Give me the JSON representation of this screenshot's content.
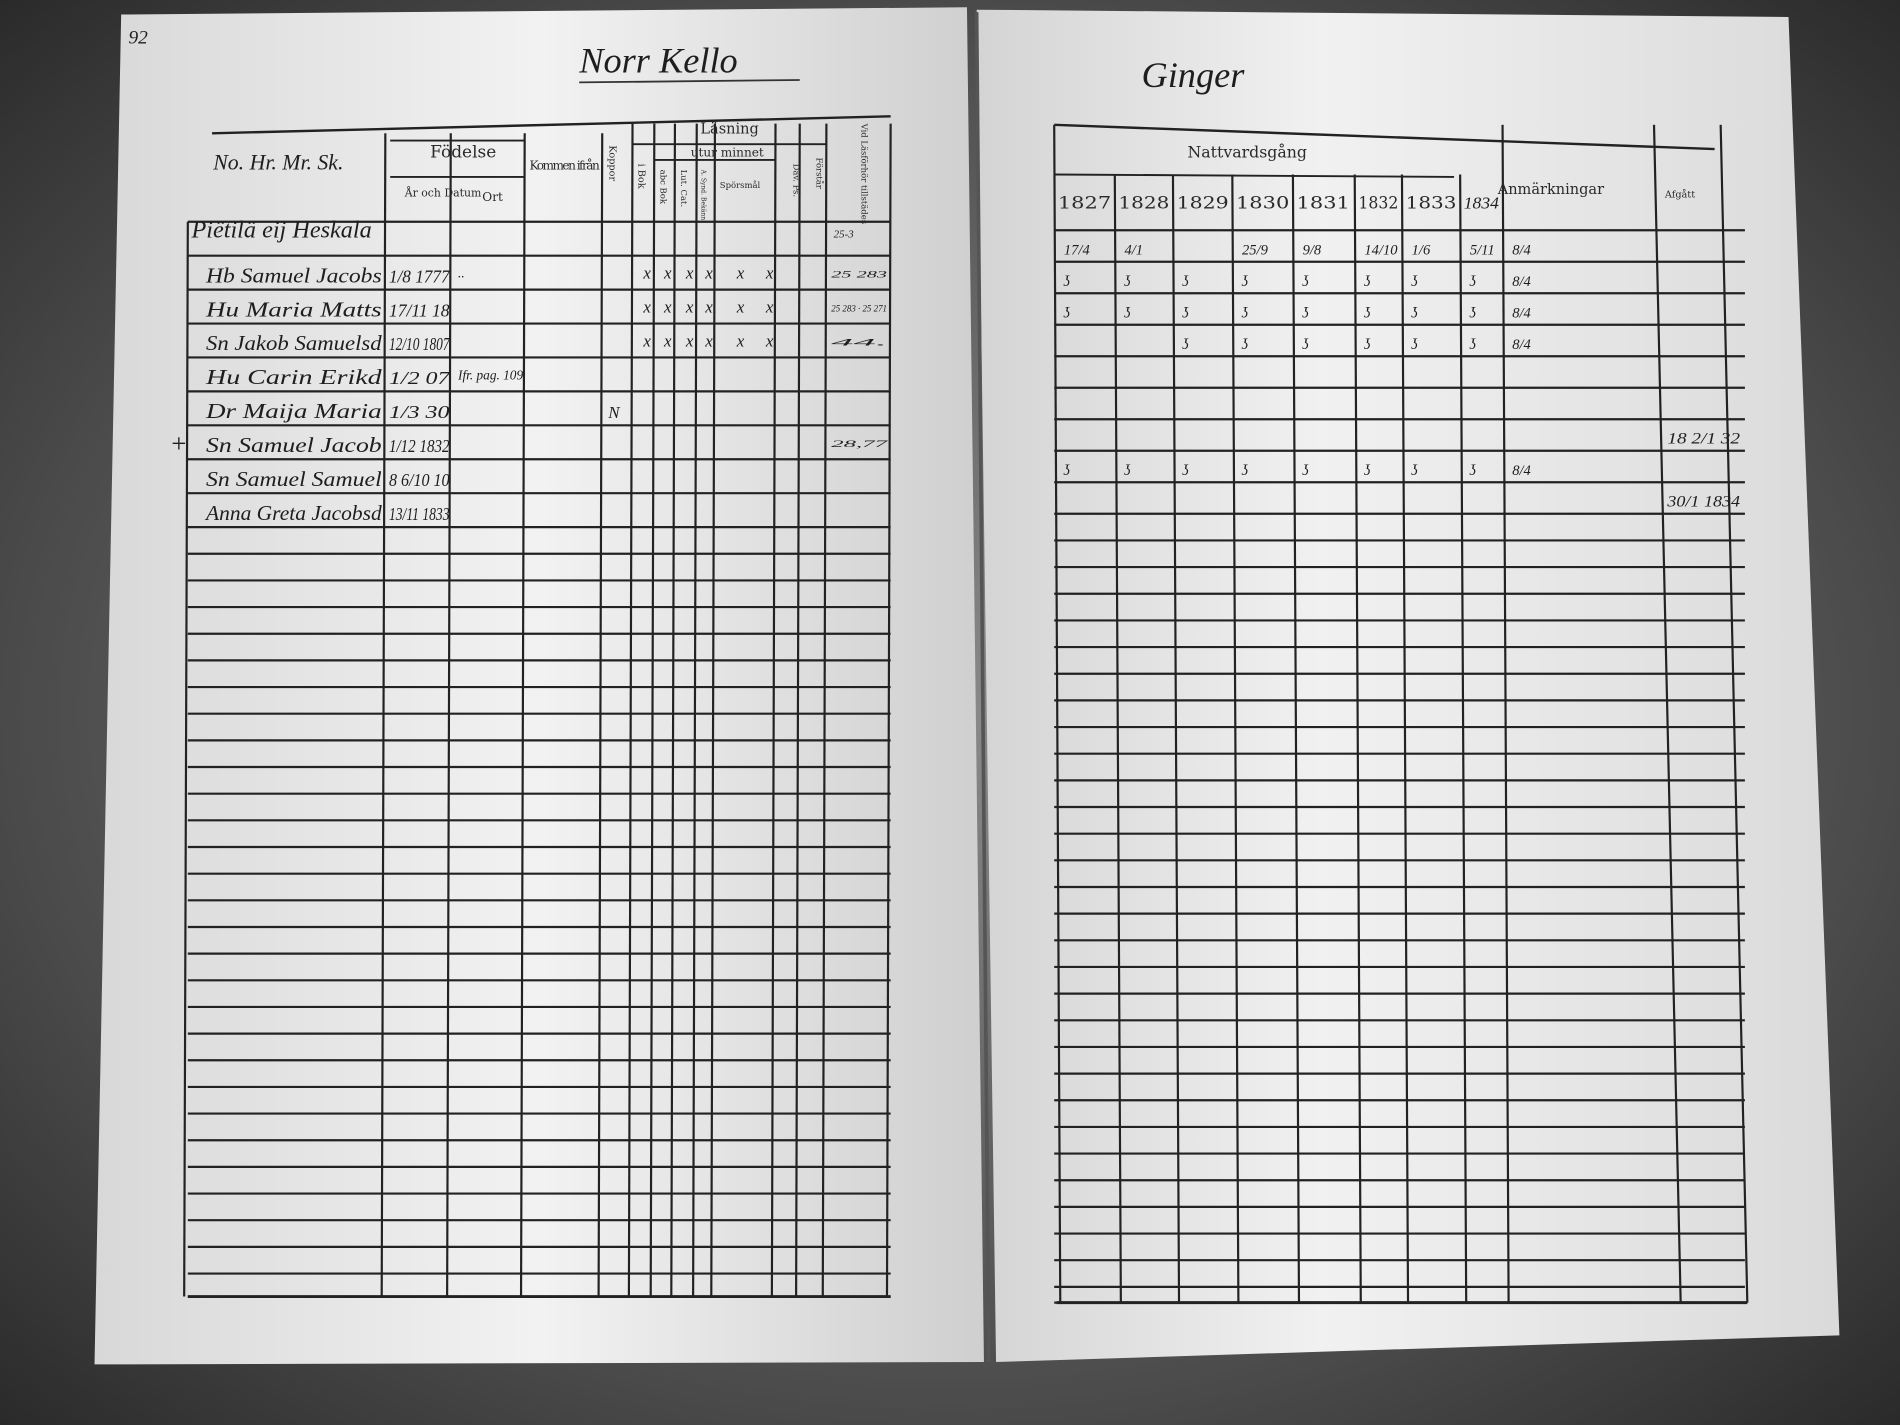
{
  "left_page": {
    "page_number": "92",
    "title": "Norr Kello",
    "headers": {
      "name_col": "No. Hr. Mr. Sk.",
      "fodelse": "Födelse",
      "ar_och_datum": "År och Datum",
      "ort": "Ort",
      "kommen_ifran": "Kommen ifrån",
      "koppor": "Koppor",
      "lasning": "Läsning",
      "utur_minnet": "utur minnet",
      "i_bok": "i Bok",
      "abc_bok": "abc Bok",
      "lut_cat": "Lut. Cat.",
      "a_synd": "A. Synd. Bekänn.",
      "sporsmal": "Spörsmål",
      "dav_ps": "Dav. Ps.",
      "forstar": "Förstår",
      "vid_lasforhor": "Vid Läsförhör tillstädes"
    },
    "household": "Piëtilä eij Heskala",
    "household_note": "25-3",
    "rows": [
      {
        "marker": "",
        "name": "Hb Samuel Jacobs",
        "birth": "1/8 1777",
        "ort": "..",
        "kommen": "",
        "koppor": "",
        "reading": [
          "x",
          "x",
          "x",
          "x",
          "x",
          "x"
        ],
        "vid": "25 283"
      },
      {
        "marker": "",
        "name": "Hu Maria Matts",
        "birth": "17/11 18",
        "ort": "",
        "kommen": "",
        "koppor": "",
        "reading": [
          "x",
          "x",
          "x",
          "x",
          "x",
          "x"
        ],
        "vid": "25 283 · 25 271"
      },
      {
        "marker": "",
        "name": "Sn Jakob Samuelsd",
        "birth": "12/10 1807",
        "ort": "",
        "kommen": "",
        "koppor": "",
        "reading": [
          "x",
          "x",
          "x",
          "x",
          "x",
          "x"
        ],
        "vid": "44."
      },
      {
        "marker": "",
        "name": "Hu Carin Erikd",
        "birth": "1/2 07",
        "ort": "Ifr. pag. 109",
        "kommen": "",
        "koppor": "",
        "reading": [
          "",
          "",
          "",
          "",
          "",
          ""
        ],
        "vid": ""
      },
      {
        "marker": "",
        "name": "Dr Maija Maria",
        "birth": "1/3 30",
        "ort": "",
        "kommen": "",
        "koppor": "N",
        "reading": [
          "",
          "",
          "",
          "",
          "",
          ""
        ],
        "vid": ""
      },
      {
        "marker": "+",
        "name": "Sn Samuel Jacob",
        "birth": "1/12 1832",
        "ort": "",
        "kommen": "",
        "koppor": "",
        "reading": [
          "",
          "",
          "",
          "",
          "",
          ""
        ],
        "vid": "28,77"
      },
      {
        "marker": "",
        "name": "Sn Samuel Samuel",
        "birth": "8 6/10 10",
        "ort": "",
        "kommen": "",
        "koppor": "",
        "reading": [
          "",
          "",
          "",
          "",
          "",
          ""
        ],
        "vid": ""
      },
      {
        "marker": "",
        "name": "Anna Greta Jacobsd",
        "birth": "13/11 1833",
        "ort": "",
        "kommen": "",
        "koppor": "",
        "reading": [
          "",
          "",
          "",
          "",
          "",
          ""
        ],
        "vid": ""
      }
    ]
  },
  "right_page": {
    "title": "Ginger",
    "headers": {
      "nattvardsgang": "Nattvardsgång",
      "years": [
        "1827",
        "1828",
        "1829",
        "1830",
        "1831",
        "1832",
        "1833",
        "1834"
      ],
      "anmarkningar": "Anmärkningar",
      "afgatt": "Afgått"
    },
    "rows": [
      {
        "marks": [
          "17/4",
          "4/1",
          "",
          "25/9",
          "9/8",
          "14/10",
          "1/6",
          "5/11",
          "8/4"
        ],
        "afgatt": ""
      },
      {
        "marks": [
          "ʖ",
          "ʖ",
          "ʖ",
          "ʖ",
          "ʖ",
          "ʖ",
          "ʖ",
          "ʖ",
          "8/4"
        ],
        "afgatt": ""
      },
      {
        "marks": [
          "ʖ",
          "ʖ",
          "ʖ",
          "ʖ",
          "ʖ",
          "ʖ",
          "ʖ",
          "ʖ",
          "8/4"
        ],
        "afgatt": ""
      },
      {
        "marks": [
          "",
          "",
          "ʖ",
          "ʖ",
          "ʖ",
          "ʖ",
          "ʖ",
          "ʖ",
          "8/4"
        ],
        "afgatt": ""
      },
      {
        "marks": [
          "",
          "",
          "",
          "",
          "",
          "",
          "",
          "",
          ""
        ],
        "afgatt": ""
      },
      {
        "marks": [
          "",
          "",
          "",
          "",
          "",
          "",
          "",
          "",
          ""
        ],
        "afgatt": "18 2/1 32"
      },
      {
        "marks": [
          "ʖ",
          "ʖ",
          "ʖ",
          "ʖ",
          "ʖ",
          "ʖ",
          "ʖ",
          "ʖ",
          "8/4"
        ],
        "afgatt": ""
      },
      {
        "marks": [
          "",
          "",
          "",
          "",
          "",
          "",
          "",
          "",
          ""
        ],
        "afgatt": "30/1 1834"
      }
    ]
  }
}
